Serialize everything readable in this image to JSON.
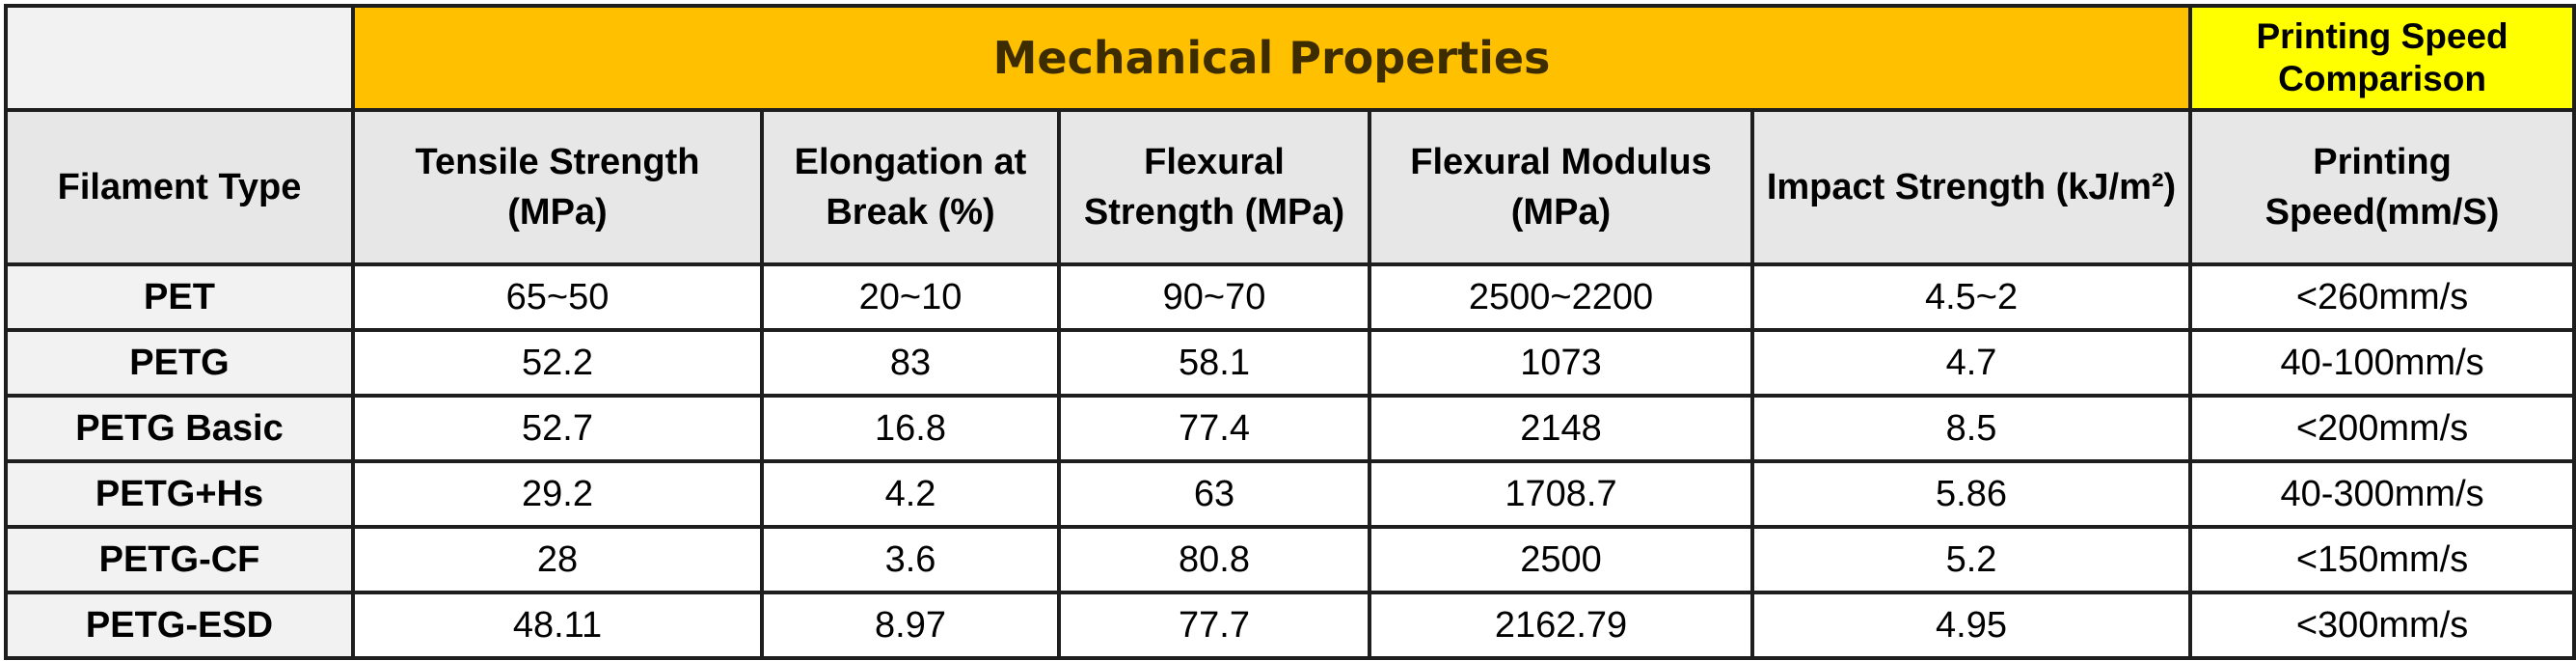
{
  "groups": {
    "mechanical": "Mechanical Properties",
    "speed": "Printing Speed Comparison"
  },
  "headers": [
    "Filament Type",
    "Tensile Strength (MPa)",
    "Elongation at Break (%)",
    "Flexural Strength (MPa)",
    "Flexural Modulus (MPa)",
    "Impact Strength (kJ/m²)",
    "Printing Speed(mm/S)"
  ],
  "rows": [
    [
      "PET",
      "65~50",
      "20~10",
      "90~70",
      "2500~2200",
      "4.5~2",
      "<260mm/s"
    ],
    [
      "PETG",
      "52.2",
      "83",
      "58.1",
      "1073",
      "4.7",
      "40-100mm/s"
    ],
    [
      "PETG Basic",
      "52.7",
      "16.8",
      "77.4",
      "2148",
      "8.5",
      "<200mm/s"
    ],
    [
      "PETG+Hs",
      "29.2",
      "4.2",
      "63",
      "1708.7",
      "5.86",
      "40-300mm/s"
    ],
    [
      "PETG-CF",
      "28",
      "3.6",
      "80.8",
      "2500",
      "5.2",
      "<150mm/s"
    ],
    [
      "PETG-ESD",
      "48.11",
      "8.97",
      "77.7",
      "2162.79",
      "4.95",
      "<300mm/s"
    ]
  ]
}
